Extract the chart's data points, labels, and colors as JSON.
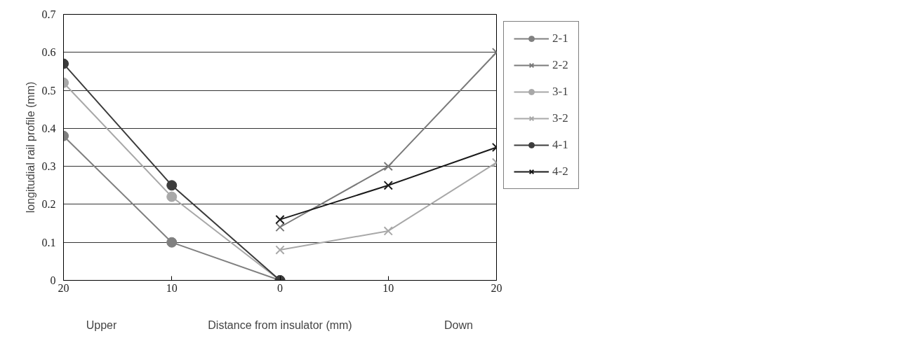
{
  "chart_data": {
    "type": "line",
    "xlabel": "Distance from insulator (mm)",
    "ylabel": "longitudial rail profile (mm)",
    "categories": [
      "20",
      "10",
      "0",
      "10",
      "20"
    ],
    "annotations": [
      "Upper",
      "Down"
    ],
    "ylim": [
      0,
      0.7
    ],
    "yticks": [
      0,
      0.1,
      0.2,
      0.3,
      0.4,
      0.5,
      0.6,
      0.7
    ],
    "grid": "y",
    "legend": "right",
    "series": [
      {
        "name": "2-1",
        "color": "#808080",
        "marker": "circle",
        "values": [
          0.38,
          0.1,
          0,
          null,
          null
        ]
      },
      {
        "name": "2-2",
        "color": "#7a7a7a",
        "marker": "cross",
        "values": [
          null,
          null,
          0.14,
          0.3,
          0.6
        ]
      },
      {
        "name": "3-1",
        "color": "#a8a8a8",
        "marker": "circle",
        "values": [
          0.52,
          0.22,
          0,
          null,
          null
        ]
      },
      {
        "name": "3-2",
        "color": "#a8a8a8",
        "marker": "cross",
        "values": [
          null,
          null,
          0.08,
          0.13,
          0.31
        ]
      },
      {
        "name": "4-1",
        "color": "#3c3c3c",
        "marker": "circle",
        "values": [
          0.57,
          0.25,
          0,
          null,
          null
        ]
      },
      {
        "name": "4-2",
        "color": "#1a1a1a",
        "marker": "cross",
        "values": [
          null,
          null,
          0.16,
          0.25,
          0.35
        ]
      }
    ]
  }
}
